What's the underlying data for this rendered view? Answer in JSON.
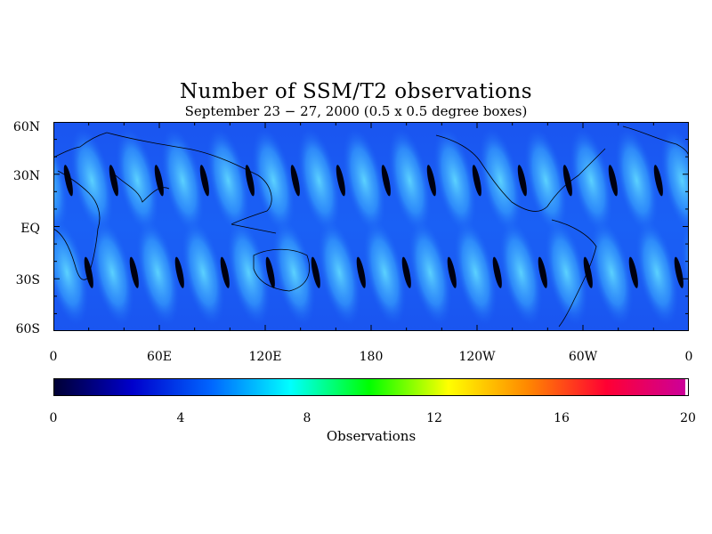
{
  "title": "Number of SSM/T2 observations",
  "subtitle": "September 23 − 27, 2000 (0.5 x 0.5 degree boxes)",
  "map": {
    "lat_labels": [
      "60N",
      "30N",
      "EQ",
      "30S",
      "60S"
    ],
    "lon_labels": [
      "0",
      "60E",
      "120E",
      "180",
      "120W",
      "60W",
      "0"
    ],
    "lat_range": [
      -60,
      60
    ],
    "lon_range": [
      0,
      360
    ],
    "colormap_note": "observation counts per box shown as colour; mostly 2-7 with swath gaps at 0"
  },
  "colorbar": {
    "title": "Observations",
    "range": [
      0,
      20
    ],
    "tick_labels": [
      "0",
      "4",
      "8",
      "12",
      "16",
      "20"
    ],
    "colors": [
      "#000033",
      "#0000cc",
      "#0066ff",
      "#00ffff",
      "#00ff00",
      "#ffff00",
      "#ff8800",
      "#ff0033",
      "#cc0099"
    ]
  }
}
